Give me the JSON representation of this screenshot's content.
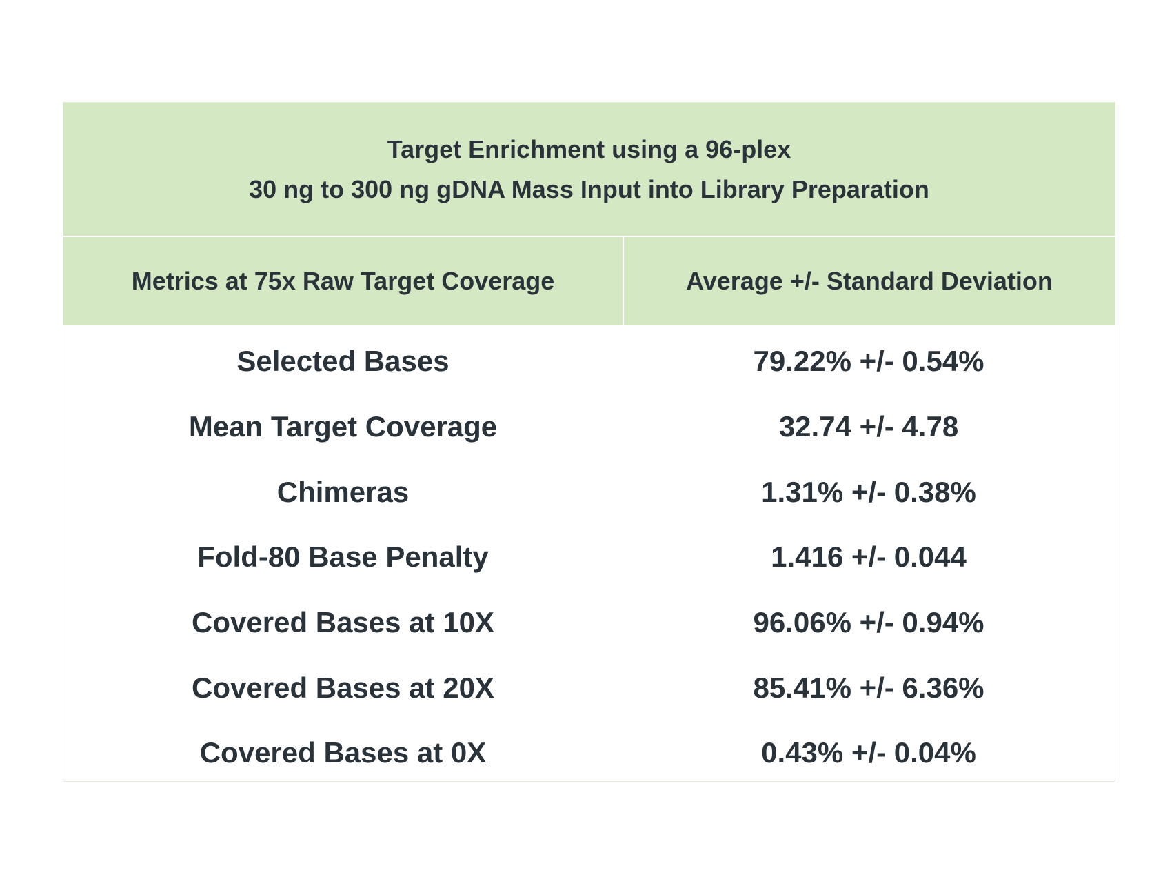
{
  "table": {
    "title_lines": [
      "Target Enrichment using a 96-plex",
      "30 ng to 300 ng gDNA Mass Input into Library Preparation"
    ],
    "columns": [
      "Metrics at 75x Raw Target Coverage",
      "Average +/- Standard Deviation"
    ],
    "rows": [
      {
        "metric": "Selected Bases",
        "value": "79.22% +/- 0.54%"
      },
      {
        "metric": "Mean Target Coverage",
        "value": "32.74 +/- 4.78"
      },
      {
        "metric": "Chimeras",
        "value": "1.31% +/- 0.38%"
      },
      {
        "metric": "Fold-80 Base Penalty",
        "value": "1.416 +/- 0.044"
      },
      {
        "metric": "Covered Bases at 10X",
        "value": "96.06% +/- 0.94%"
      },
      {
        "metric": "Covered Bases at 20X",
        "value": "85.41% +/- 6.36%"
      },
      {
        "metric": "Covered Bases at 0X",
        "value": "0.43% +/- 0.04%"
      }
    ],
    "colors": {
      "header_background": "#d5e8c4",
      "text": "#2b333a"
    }
  }
}
